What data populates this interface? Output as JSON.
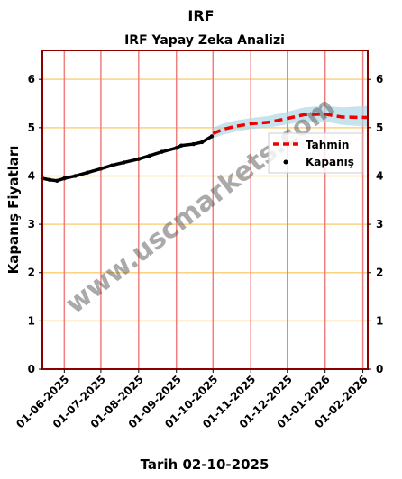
{
  "page_title": "IRF",
  "date_label": "Tarih 02-10-2025",
  "watermark": "www.uscmarkets.com",
  "colors": {
    "forecast": "#ee0000",
    "close": "#000000",
    "confidence": "#add8e6",
    "vgrid": "#f08080",
    "hgrid": "#ffd27f",
    "frame": "#8b0000"
  },
  "chart_data": {
    "type": "line",
    "title": "IRF Yapay Zeka Analizi",
    "xlabel": "",
    "ylabel": "Kapanış Fiyatları",
    "ylim": [
      0,
      6.6
    ],
    "xlim": [
      "2025-05-14",
      "2026-02-05"
    ],
    "yticks": [
      0,
      1,
      2,
      3,
      4,
      5,
      6
    ],
    "xticks": [
      "2025-06-01",
      "2025-07-01",
      "2025-08-01",
      "2025-09-01",
      "2025-10-01",
      "2025-11-01",
      "2025-12-01",
      "2026-01-01",
      "2026-02-01"
    ],
    "xtick_labels": [
      "01-06-2025",
      "01-07-2025",
      "01-08-2025",
      "01-09-2025",
      "01-10-2025",
      "01-11-2025",
      "01-12-2025",
      "01-01-2026",
      "01-02-2026"
    ],
    "grid": true,
    "legend_position": "right",
    "series": [
      {
        "name": "Tahmin",
        "style": "dashed-line",
        "points": [
          [
            "2025-10-01",
            4.88
          ],
          [
            "2025-10-10",
            4.97
          ],
          [
            "2025-10-20",
            5.03
          ],
          [
            "2025-11-01",
            5.08
          ],
          [
            "2025-11-15",
            5.11
          ],
          [
            "2025-12-01",
            5.19
          ],
          [
            "2025-12-15",
            5.27
          ],
          [
            "2026-01-01",
            5.28
          ],
          [
            "2026-01-15",
            5.22
          ],
          [
            "2026-02-05",
            5.21
          ]
        ],
        "band_upper": [
          5.0,
          5.09,
          5.15,
          5.2,
          5.24,
          5.33,
          5.42,
          5.45,
          5.42,
          5.45
        ],
        "band_lower": [
          4.78,
          4.86,
          4.92,
          4.97,
          5.0,
          5.07,
          5.13,
          5.13,
          5.06,
          5.02
        ]
      },
      {
        "name": "Kapanış",
        "style": "dots",
        "points": [
          [
            "2025-05-14",
            3.95
          ],
          [
            "2025-05-20",
            3.92
          ],
          [
            "2025-05-26",
            3.9
          ],
          [
            "2025-06-01",
            3.95
          ],
          [
            "2025-06-10",
            4.0
          ],
          [
            "2025-06-20",
            4.07
          ],
          [
            "2025-07-01",
            4.15
          ],
          [
            "2025-07-10",
            4.22
          ],
          [
            "2025-07-20",
            4.28
          ],
          [
            "2025-08-01",
            4.35
          ],
          [
            "2025-08-10",
            4.42
          ],
          [
            "2025-08-20",
            4.5
          ],
          [
            "2025-09-01",
            4.58
          ],
          [
            "2025-09-05",
            4.63
          ],
          [
            "2025-09-15",
            4.66
          ],
          [
            "2025-09-22",
            4.7
          ],
          [
            "2025-09-30",
            4.82
          ]
        ]
      }
    ]
  }
}
